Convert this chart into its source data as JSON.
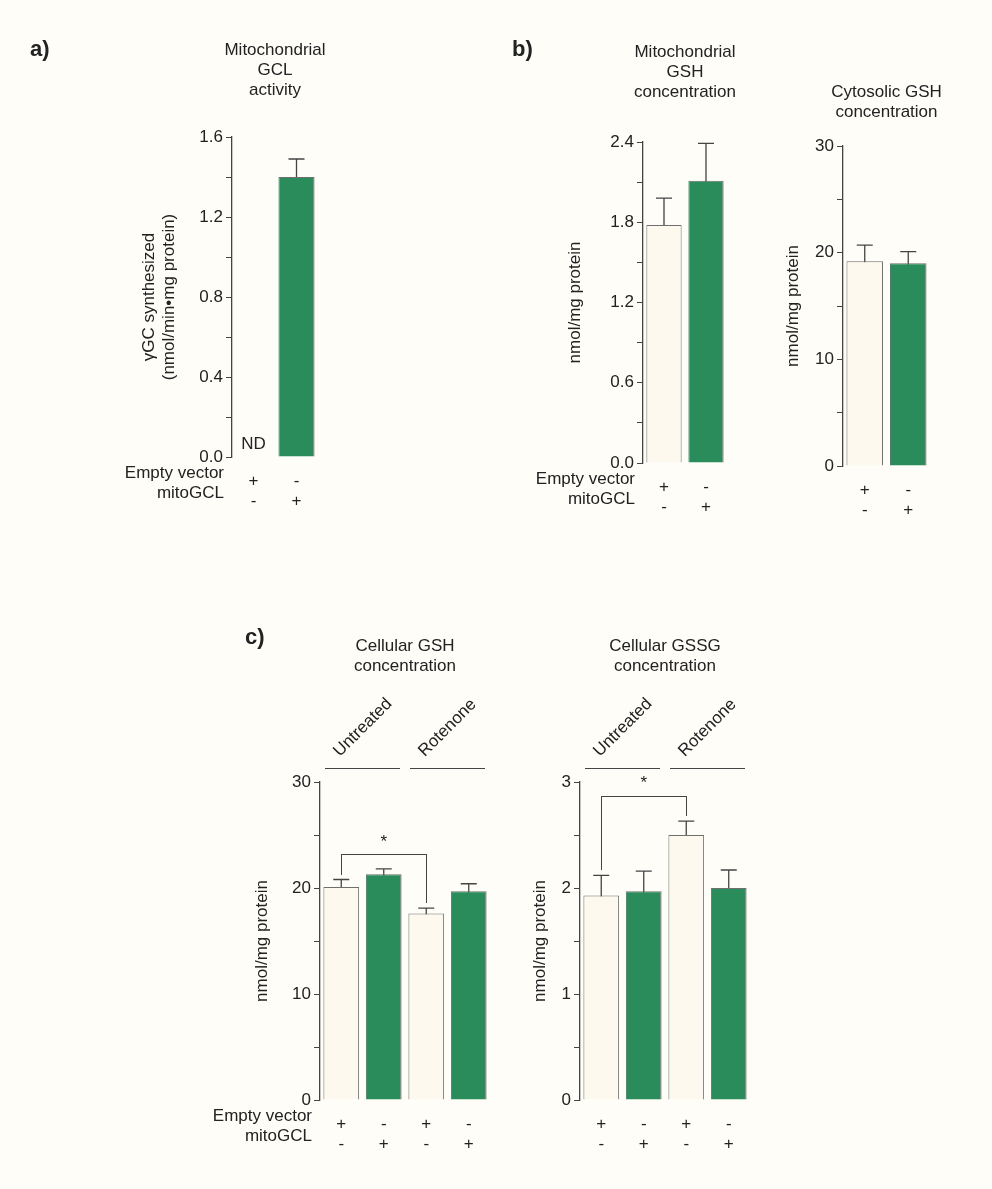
{
  "chart_data": [
    {
      "type": "bar",
      "title": "Mitochondrial\nGCL\nactivity",
      "ylabel": "γGC synthesized\n(nmol/min•mg protein)",
      "categories": [
        "+\n-",
        "-\n+"
      ],
      "values": [
        0,
        1.4
      ],
      "errors": [
        null,
        0.09
      ],
      "value_labels": [
        "ND",
        null
      ],
      "colors": [
        "#fdf9ee",
        "#2a8c5a"
      ],
      "ylim": [
        0,
        1.6
      ],
      "yticks": [
        {
          "value": 0,
          "label": "0.0"
        },
        {
          "value": 0.2,
          "label": null
        },
        0.4,
        {
          "value": 0.6,
          "label": null
        },
        0.8,
        {
          "value": 1.0,
          "label": null
        },
        1.2,
        {
          "value": 1.4,
          "label": null
        },
        1.6
      ],
      "annotations": [
        "a)",
        "Empty vector",
        "mitoGCL"
      ]
    },
    {
      "type": "bar",
      "title": "Mitochondrial\nGSH\nconcentration",
      "ylabel": "nmol/mg protein",
      "categories": [
        "+\n-",
        "-\n+"
      ],
      "values": [
        1.78,
        2.11
      ],
      "errors": [
        0.2,
        0.28
      ],
      "colors": [
        "#fdf9ee",
        "#2a8c5a"
      ],
      "ylim": [
        0,
        2.4
      ],
      "yticks": [
        {
          "value": 0,
          "label": "0.0"
        },
        {
          "value": 0.3,
          "label": null
        },
        0.6,
        {
          "value": 0.9,
          "label": null
        },
        1.2,
        {
          "value": 1.5,
          "label": null
        },
        1.8,
        {
          "value": 2.1,
          "label": null
        },
        2.4
      ],
      "annotations": [
        "b)",
        "Empty vector",
        "mitoGCL"
      ]
    },
    {
      "type": "bar",
      "title": "Cytosolic GSH\nconcentration",
      "ylabel": "nmol/mg protein",
      "categories": [
        "+\n-",
        "-\n+"
      ],
      "values": [
        19.2,
        19.0
      ],
      "errors": [
        1.5,
        1.1
      ],
      "colors": [
        "#fdf9ee",
        "#2a8c5a"
      ],
      "ylim": [
        0,
        30
      ],
      "yticks": [
        0,
        {
          "value": 5,
          "label": null
        },
        10,
        {
          "value": 15,
          "label": null
        },
        20,
        {
          "value": 25,
          "label": null
        },
        30
      ]
    },
    {
      "type": "bar",
      "title": "Cellular GSH\nconcentration",
      "ylabel": "nmol/mg protein",
      "categories": [
        "+\n-",
        "-\n+",
        "+\n-",
        "-\n+"
      ],
      "values": [
        20.1,
        21.3,
        17.6,
        19.7
      ],
      "errors": [
        0.7,
        0.5,
        0.5,
        0.7
      ],
      "colors": [
        "#fdf9ee",
        "#2a8c5a",
        "#fdf9ee",
        "#2a8c5a"
      ],
      "ylim": [
        0,
        30
      ],
      "yticks": [
        0,
        {
          "value": 5,
          "label": null
        },
        10,
        {
          "value": 15,
          "label": null
        },
        20,
        {
          "value": 25,
          "label": null
        },
        30
      ],
      "annotations": [
        "c)",
        "Empty vector",
        "mitoGCL",
        "Untreated",
        "Rotenone",
        "*"
      ]
    },
    {
      "type": "bar",
      "title": "Cellular GSSG\nconcentration",
      "ylabel": "nmol/mg protein",
      "categories": [
        "+\n-",
        "-\n+",
        "+\n-",
        "-\n+"
      ],
      "values": [
        1.93,
        1.97,
        2.5,
        2.0
      ],
      "errors": [
        0.19,
        0.19,
        0.13,
        0.17
      ],
      "colors": [
        "#fdf9ee",
        "#2a8c5a",
        "#fdf9ee",
        "#2a8c5a"
      ],
      "ylim": [
        0,
        3
      ],
      "yticks": [
        0,
        {
          "value": 0.5,
          "label": null
        },
        1,
        {
          "value": 1.5,
          "label": null
        },
        2,
        {
          "value": 2.5,
          "label": null
        },
        3
      ],
      "annotations": [
        "Untreated",
        "Rotenone",
        "*"
      ]
    }
  ]
}
